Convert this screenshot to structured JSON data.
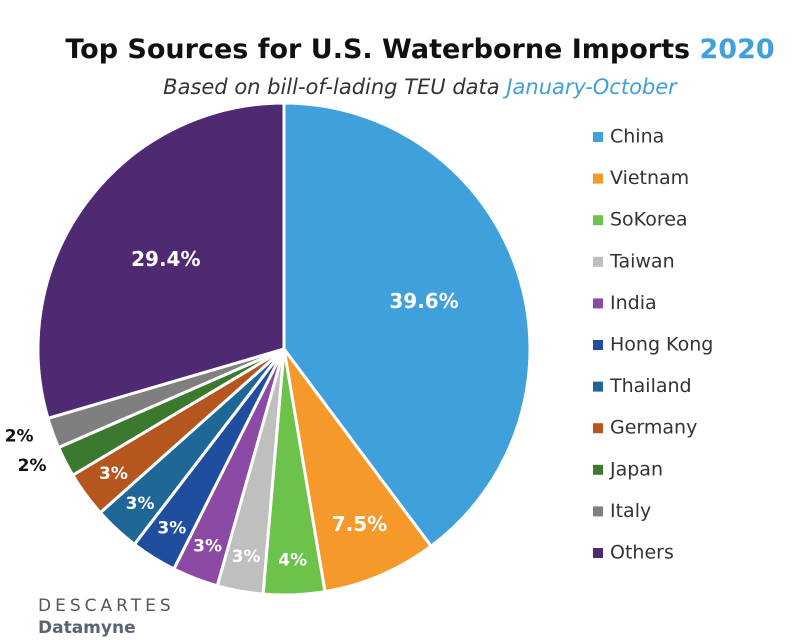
{
  "chart_data": {
    "type": "pie",
    "title": "Top Sources for U.S. Waterborne Imports",
    "title_year": "2020",
    "subtitle": "Based on bill-of-lading TEU data",
    "subtitle_period": "January-October",
    "categories": [
      "China",
      "Vietnam",
      "SoKorea",
      "Taiwan",
      "India",
      "Hong Kong",
      "Thailand",
      "Germany",
      "Japan",
      "Italy",
      "Others"
    ],
    "values": [
      39.6,
      7.5,
      4,
      3,
      3,
      3,
      3,
      3,
      2,
      2,
      29.4
    ],
    "value_labels": [
      "39.6%",
      "7.5%",
      "4%",
      "3%",
      "3%",
      "3%",
      "3%",
      "3%",
      "2%",
      "2%",
      "29.4%"
    ],
    "colors": [
      "#3fa0db",
      "#f59a2a",
      "#6cc24a",
      "#bfbfbf",
      "#8a4aa5",
      "#1f4e9f",
      "#1f6796",
      "#b5561e",
      "#3b7a2e",
      "#7f7f7f",
      "#4f2a73"
    ],
    "legend": "right"
  },
  "footer": {
    "brand": "DESCARTES",
    "product": "Datamyne"
  }
}
